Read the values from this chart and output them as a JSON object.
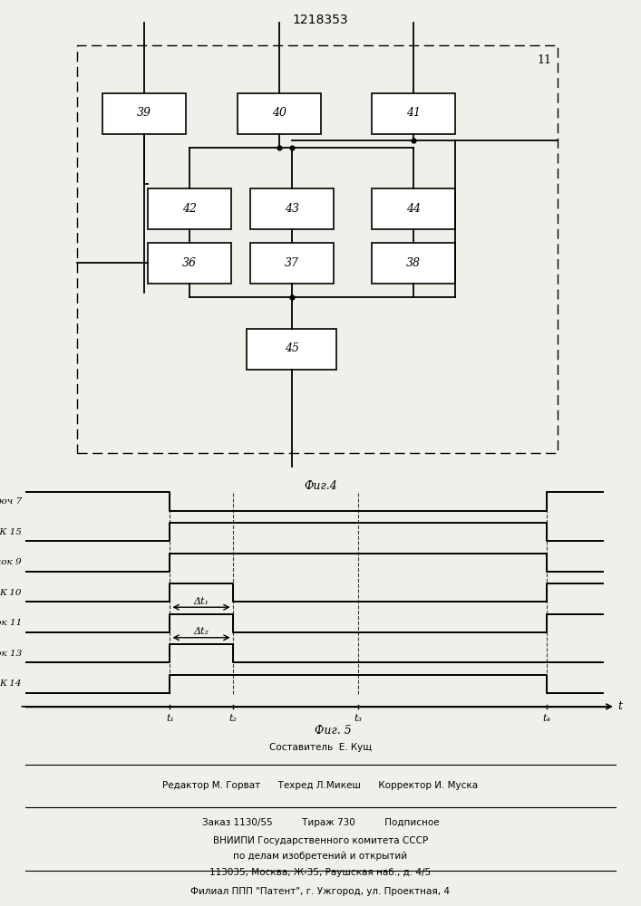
{
  "title": "1218353",
  "fig4_label": "Фиг.4",
  "fig5_label": "Фиг. 5",
  "bg_color": "#f0f0eb",
  "t1": 1.0,
  "t2": 1.5,
  "t3": 2.5,
  "t4": 4.0,
  "footer_line1": "Составитель  Е. Кущ",
  "footer_line2": "Редактор М. Горват      Техред Л.Микеш      Корректор И. Муска",
  "order_line": "Заказ 1130/55          Тираж 730          Подписное",
  "vnipi_line1": "ВНИИПИ Государственного комитета СССР",
  "vnipi_line2": "по делам изобретений и открытий",
  "vnipi_line3": "113035, Москва, Ж-35, Раушская наб., д. 4/5",
  "filial_line": "Филиал ППП \"Патент\", г. Ужгород, ул. Проектная, 4",
  "delta_t1": "Δt₁",
  "delta_t2": "Δt₂"
}
